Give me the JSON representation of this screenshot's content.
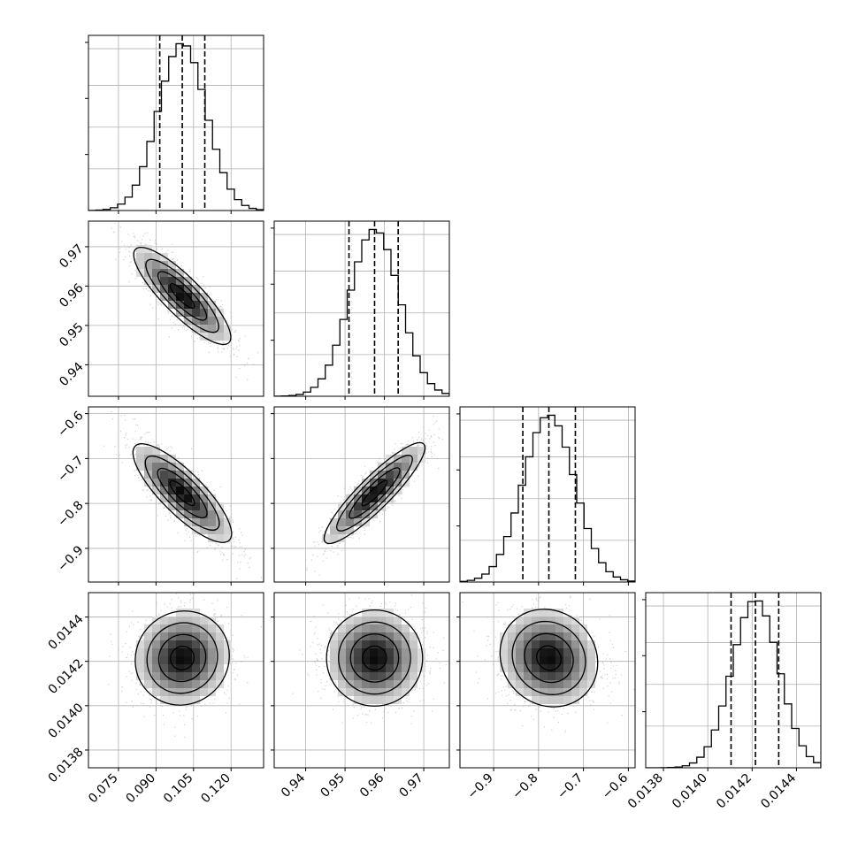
{
  "chart_data": {
    "type": "corner",
    "params": [
      {
        "range": [
          0.063,
          0.133
        ],
        "ticks": [
          0.075,
          0.09,
          0.105,
          0.12
        ],
        "tick_labels": [
          "0.075",
          "0.090",
          "0.105",
          "0.120"
        ],
        "quantiles": [
          0.0915,
          0.1005,
          0.1095
        ],
        "mean": 0.1005,
        "sd": 0.0095
      },
      {
        "range": [
          0.932,
          0.9765
        ],
        "ticks": [
          0.94,
          0.95,
          0.96,
          0.97
        ],
        "tick_labels": [
          "0.94",
          "0.95",
          "0.96",
          "0.97"
        ],
        "quantiles": [
          0.951,
          0.9575,
          0.9635
        ],
        "mean": 0.9575,
        "sd": 0.0063
      },
      {
        "range": [
          -0.975,
          -0.585
        ],
        "ticks": [
          -0.9,
          -0.8,
          -0.7,
          -0.6
        ],
        "tick_labels": [
          "−0.9",
          "−0.8",
          "−0.7",
          "−0.6"
        ],
        "quantiles": [
          -0.835,
          -0.777,
          -0.718
        ],
        "mean": -0.777,
        "sd": 0.057
      },
      {
        "range": [
          0.01372,
          0.01451
        ],
        "ticks": [
          0.0138,
          0.014,
          0.0142,
          0.0144
        ],
        "tick_labels": [
          "0.0138",
          "0.0140",
          "0.0142",
          "0.0144"
        ],
        "quantiles": [
          0.014105,
          0.014215,
          0.01432
        ],
        "mean": 0.014215,
        "sd": 0.000105
      }
    ],
    "correlations": [
      [
        1.0,
        -0.85,
        -0.82,
        0.05
      ],
      [
        -0.85,
        1.0,
        0.9,
        0.0
      ],
      [
        -0.82,
        0.9,
        1.0,
        -0.1
      ],
      [
        0.05,
        0.0,
        -0.1,
        1.0
      ]
    ],
    "histogram_bins": 24,
    "contour_levels_sigma": [
      0.5,
      1.0,
      1.5,
      2.0
    ],
    "grid": true,
    "colors": {
      "line": "#000000",
      "grid": "#b0b0b0",
      "scatter": "#aaaaaa",
      "background": "#ffffff"
    }
  }
}
